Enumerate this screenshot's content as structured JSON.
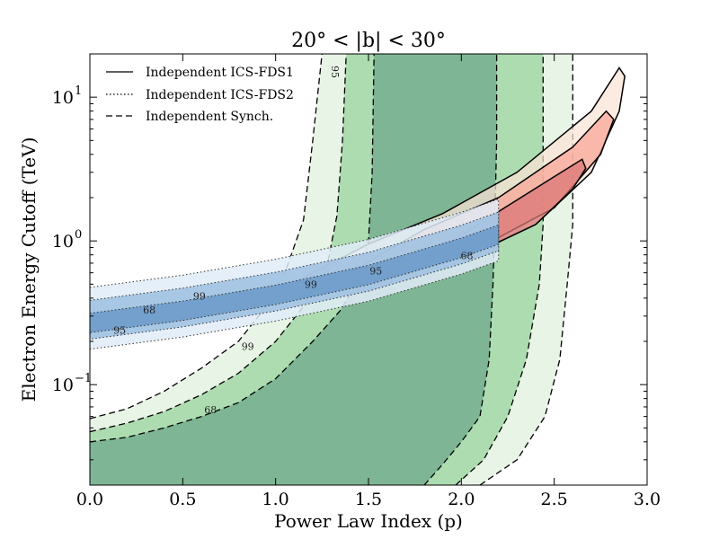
{
  "chart_data": {
    "type": "contour",
    "title": "20° < |b| < 30°",
    "xlabel": "Power Law Index (p)",
    "ylabel": "Electron Energy Cutoff (TeV)",
    "xlim": [
      0.0,
      3.0
    ],
    "ylim": [
      0.02,
      20
    ],
    "yscale": "log",
    "x_ticks": [
      0.0,
      0.5,
      1.0,
      1.5,
      2.0,
      2.5,
      3.0
    ],
    "x_tick_labels": [
      "0.0",
      "0.5",
      "1.0",
      "1.5",
      "2.0",
      "2.5",
      "3.0"
    ],
    "y_ticks": [
      0.1,
      1,
      10
    ],
    "y_tick_labels": [
      "10",
      "10",
      "10"
    ],
    "y_tick_exponents": [
      "−1",
      "0",
      "1"
    ],
    "legend": {
      "placement": "top-left",
      "entries": [
        {
          "label": "Independent ICS-FDS1",
          "linestyle": "solid"
        },
        {
          "label": "Independent ICS-FDS2",
          "linestyle": "dotted"
        },
        {
          "label": "Independent Synch.",
          "linestyle": "dashed"
        }
      ]
    },
    "series": [
      {
        "name": "Independent Synch.",
        "linestyle": "dashed",
        "colors": [
          "#e8f4e6",
          "#addcb0",
          "#7eb594"
        ],
        "levels": [
          "99",
          "95",
          "68"
        ],
        "contours": [
          {
            "level": "99",
            "left_edge": [
              [
                0.0,
                0.058
              ],
              [
                0.2,
                0.068
              ],
              [
                0.4,
                0.09
              ],
              [
                0.6,
                0.13
              ],
              [
                0.8,
                0.2
              ],
              [
                0.95,
                0.35
              ],
              [
                1.05,
                0.6
              ],
              [
                1.15,
                1.4
              ],
              [
                1.2,
                5
              ],
              [
                1.25,
                20
              ]
            ],
            "right_edge": [
              [
                2.1,
                0.02
              ],
              [
                2.3,
                0.03
              ],
              [
                2.45,
                0.06
              ],
              [
                2.53,
                0.15
              ],
              [
                2.57,
                0.5
              ],
              [
                2.6,
                1.3
              ],
              [
                2.6,
                5
              ],
              [
                2.6,
                20
              ]
            ]
          },
          {
            "level": "95",
            "left_edge": [
              [
                0.0,
                0.047
              ],
              [
                0.2,
                0.054
              ],
              [
                0.4,
                0.065
              ],
              [
                0.6,
                0.085
              ],
              [
                0.8,
                0.12
              ],
              [
                1.0,
                0.2
              ],
              [
                1.15,
                0.35
              ],
              [
                1.28,
                0.7
              ],
              [
                1.33,
                1.5
              ],
              [
                1.36,
                5
              ],
              [
                1.38,
                20
              ]
            ],
            "right_edge": [
              [
                1.97,
                0.02
              ],
              [
                2.12,
                0.03
              ],
              [
                2.25,
                0.06
              ],
              [
                2.35,
                0.15
              ],
              [
                2.42,
                0.5
              ],
              [
                2.44,
                1.3
              ],
              [
                2.44,
                5
              ],
              [
                2.44,
                20
              ]
            ]
          },
          {
            "level": "68",
            "left_edge": [
              [
                0.0,
                0.04
              ],
              [
                0.2,
                0.043
              ],
              [
                0.4,
                0.05
              ],
              [
                0.6,
                0.06
              ],
              [
                0.8,
                0.075
              ],
              [
                1.0,
                0.11
              ],
              [
                1.2,
                0.2
              ],
              [
                1.35,
                0.33
              ],
              [
                1.45,
                0.55
              ],
              [
                1.5,
                1.0
              ],
              [
                1.52,
                3
              ],
              [
                1.53,
                20
              ]
            ],
            "right_edge": [
              [
                1.8,
                0.02
              ],
              [
                1.9,
                0.028
              ],
              [
                2.0,
                0.04
              ],
              [
                2.1,
                0.06
              ],
              [
                2.15,
                0.15
              ],
              [
                2.17,
                0.5
              ],
              [
                2.18,
                1.3
              ],
              [
                2.19,
                5
              ],
              [
                2.19,
                20
              ]
            ]
          }
        ]
      },
      {
        "name": "Independent ICS-FDS1",
        "linestyle": "solid",
        "colors": [
          "#fbe3d6",
          "#f9a396",
          "#d97474"
        ],
        "levels": [
          "99",
          "95",
          "68"
        ],
        "contours": [
          {
            "level": "99",
            "points": [
              [
                0.95,
                0.4
              ],
              [
                1.5,
                0.52
              ],
              [
                2.0,
                0.75
              ],
              [
                2.4,
                1.3
              ],
              [
                2.7,
                3.0
              ],
              [
                2.85,
                8
              ],
              [
                2.88,
                14
              ],
              [
                2.85,
                16
              ],
              [
                2.7,
                8
              ],
              [
                2.3,
                3.0
              ],
              [
                1.9,
                1.55
              ],
              [
                1.5,
                0.95
              ],
              [
                1.2,
                0.6
              ],
              [
                1.02,
                0.45
              ]
            ]
          },
          {
            "level": "95",
            "points": [
              [
                1.3,
                0.5
              ],
              [
                1.7,
                0.58
              ],
              [
                2.1,
                0.9
              ],
              [
                2.5,
                1.7
              ],
              [
                2.75,
                4
              ],
              [
                2.82,
                7
              ],
              [
                2.78,
                8
              ],
              [
                2.6,
                4.5
              ],
              [
                2.2,
                2.0
              ],
              [
                1.8,
                1.2
              ],
              [
                1.5,
                0.72
              ],
              [
                1.35,
                0.55
              ]
            ]
          },
          {
            "level": "68",
            "points": [
              [
                1.78,
                0.74
              ],
              [
                2.1,
                0.85
              ],
              [
                2.4,
                1.3
              ],
              [
                2.6,
                2.3
              ],
              [
                2.67,
                3.2
              ],
              [
                2.65,
                3.7
              ],
              [
                2.5,
                2.8
              ],
              [
                2.2,
                1.6
              ],
              [
                1.95,
                1.0
              ],
              [
                1.82,
                0.82
              ]
            ]
          }
        ],
        "contour_labels": [
          "95",
          "68"
        ]
      },
      {
        "name": "Independent ICS-FDS2",
        "linestyle": "dotted",
        "colors": [
          "#e0ecf8",
          "#9ec0e0",
          "#6a99c9"
        ],
        "levels": [
          "99",
          "95",
          "68"
        ],
        "band": [
          [
            0.0,
            0.255
          ],
          [
            0.5,
            0.31
          ],
          [
            1.0,
            0.4
          ],
          [
            1.5,
            0.55
          ],
          [
            2.0,
            0.85
          ],
          [
            2.2,
            1.05
          ]
        ],
        "widths": {
          "99": [
            0.27,
            0.16
          ],
          "95": [
            0.18,
            0.09
          ],
          "68": [
            0.09,
            0.045
          ]
        },
        "contour_labels": [
          "99",
          "68",
          "95",
          "99"
        ]
      }
    ]
  }
}
